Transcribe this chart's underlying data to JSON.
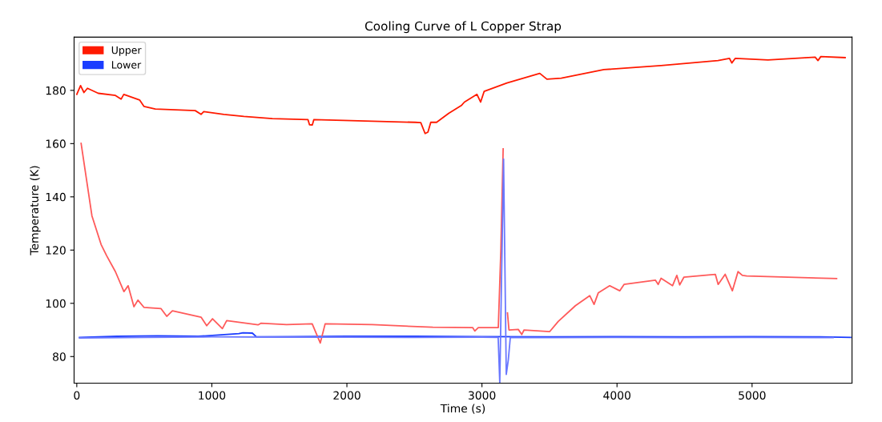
{
  "chart_data": {
    "type": "line",
    "title": "Cooling Curve of L Copper Strap",
    "xlabel": "Time (s)",
    "ylabel": "Temperature (K)",
    "xlim": [
      -20,
      5740
    ],
    "ylim": [
      70,
      200
    ],
    "xticks": [
      0,
      1000,
      2000,
      3000,
      4000,
      5000
    ],
    "yticks": [
      80,
      100,
      120,
      140,
      160,
      180
    ],
    "grid": false,
    "legend": "top left",
    "marker": "none",
    "line_style": "solid",
    "series": [
      {
        "name": "Upper",
        "color": "#ff1a00",
        "x": [
          0,
          28,
          53,
          79,
          159,
          286,
          328,
          348,
          465,
          497,
          581,
          877,
          920,
          940,
          1089,
          1237,
          1448,
          1712,
          1723,
          1744,
          1755,
          1976,
          2505,
          2547,
          2579,
          2600,
          2621,
          2664,
          2754,
          2847,
          2870,
          2963,
          2990,
          3016,
          3185,
          3428,
          3481,
          3587,
          3903,
          4326,
          4748,
          4833,
          4850,
          4875,
          5118,
          5467,
          5488,
          5509,
          5689
        ],
        "values": [
          178.5,
          181.8,
          179.2,
          180.8,
          178.9,
          178.1,
          176.7,
          178.5,
          176.4,
          174,
          173,
          172.4,
          171,
          172,
          171,
          170.2,
          169.4,
          169,
          167.1,
          167,
          169,
          168.7,
          168,
          167.9,
          163.8,
          164.3,
          168,
          168,
          171.4,
          174.3,
          175.6,
          178.5,
          175.6,
          179.6,
          182.8,
          186.4,
          184.2,
          184.6,
          187.8,
          189.3,
          191.2,
          192,
          190.3,
          192,
          191.4,
          192.5,
          191.2,
          192.7,
          192.3
        ]
      },
      {
        "name": "Lower",
        "color": "#1a3cff",
        "x": [
          20,
          300,
          600,
          900,
          1200,
          1230,
          1300,
          1330,
          1600,
          2000,
          2500,
          3000,
          3500,
          4000,
          4500,
          5000,
          5500,
          5730
        ],
        "values": [
          87.2,
          87.6,
          87.8,
          87.6,
          88.6,
          88.9,
          88.8,
          87.4,
          87.5,
          87.6,
          87.6,
          87.5,
          87.4,
          87.5,
          87.4,
          87.5,
          87.4,
          87.2
        ]
      },
      {
        "color": "#ff5a5a",
        "x": [
          32,
          112,
          180,
          222,
          286,
          349,
          380,
          423,
          453,
          497,
          624,
          666,
          708,
          920,
          962,
          1005,
          1078,
          1110,
          1342,
          1363,
          1553,
          1743,
          1803,
          1839,
          2188,
          2636,
          2931,
          2947,
          2973,
          3121,
          3140,
          3157,
          3172,
          3189,
          3200,
          3269,
          3295,
          3312,
          3502,
          3565,
          3692,
          3798,
          3830,
          3861,
          3946,
          4020,
          4052,
          4284,
          4305,
          4326,
          4411,
          4443,
          4464,
          4495,
          4728,
          4749,
          4801,
          4854,
          4896,
          4928,
          4960,
          5626
        ],
        "values": [
          160.1,
          132.9,
          122.1,
          117.8,
          111.9,
          104.4,
          106.6,
          98.7,
          101.2,
          98.5,
          98,
          95.1,
          97.2,
          94.8,
          91.6,
          94.2,
          90.5,
          93.5,
          91.9,
          92.5,
          92,
          92.3,
          85.1,
          92.3,
          92,
          91,
          90.9,
          89.6,
          90.9,
          90.9,
          120,
          158,
          null,
          96.4,
          90,
          90.2,
          88.3,
          90,
          89.4,
          93.2,
          99.1,
          102.9,
          99.6,
          103.9,
          106.6,
          104.7,
          107.1,
          108.7,
          107.1,
          109.4,
          106.6,
          110.5,
          106.9,
          109.8,
          110.9,
          107.1,
          110.9,
          104.7,
          111.9,
          110.5,
          110.3,
          109.3
        ]
      },
      {
        "color": "#6a78ff",
        "x": [
          20,
          500,
          1000,
          1500,
          2000,
          2500,
          3000,
          3120,
          3132,
          3160,
          3180,
          3195,
          3210,
          3500,
          4000,
          4500,
          5000,
          5600
        ],
        "values": [
          87,
          87.2,
          87.4,
          87.3,
          87.3,
          87.2,
          87.3,
          87.2,
          70,
          154.2,
          73.3,
          78.7,
          87.2,
          87.1,
          87.2,
          87.1,
          87.2,
          87.1
        ]
      }
    ]
  }
}
